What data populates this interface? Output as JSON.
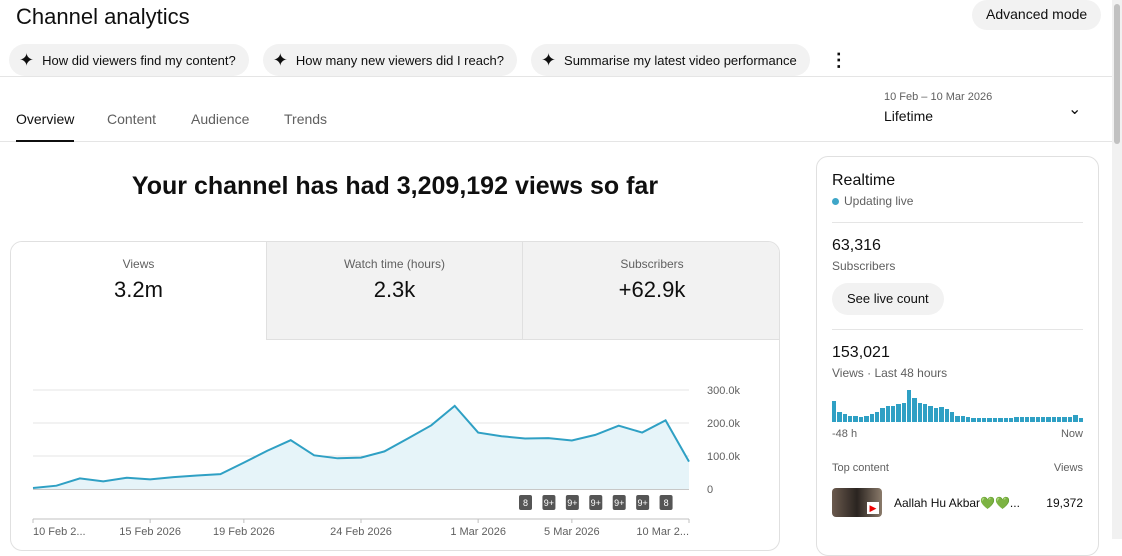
{
  "header": {
    "title": "Channel analytics",
    "advanced_mode": "Advanced mode"
  },
  "chips": [
    {
      "icon": "sparkle-icon",
      "label": "How did viewers find my content?"
    },
    {
      "icon": "sparkle-icon",
      "label": "How many new viewers did I reach?"
    },
    {
      "icon": "sparkle-icon",
      "label": "Summarise my latest video performance"
    }
  ],
  "tabs": [
    {
      "label": "Overview",
      "active": true
    },
    {
      "label": "Content"
    },
    {
      "label": "Audience"
    },
    {
      "label": "Trends"
    }
  ],
  "date_range": {
    "dates": "10 Feb – 10 Mar 2026",
    "value": "Lifetime"
  },
  "headline": "Your channel has had 3,209,192 views so far",
  "metrics": [
    {
      "label": "Views",
      "value": "3.2m"
    },
    {
      "label": "Watch time (hours)",
      "value": "2.3k"
    },
    {
      "label": "Subscribers",
      "value": "+62.9k"
    }
  ],
  "chart_data": {
    "type": "area",
    "x": [
      "10 Feb",
      "11 Feb",
      "12 Feb",
      "13 Feb",
      "14 Feb",
      "15 Feb",
      "16 Feb",
      "17 Feb",
      "18 Feb",
      "19 Feb",
      "20 Feb",
      "21 Feb",
      "22 Feb",
      "23 Feb",
      "24 Feb",
      "25 Feb",
      "26 Feb",
      "27 Feb",
      "28 Feb",
      "1 Mar",
      "2 Mar",
      "3 Mar",
      "4 Mar",
      "5 Mar",
      "6 Mar",
      "7 Mar",
      "8 Mar",
      "9 Mar",
      "10 Mar"
    ],
    "values": [
      3000,
      10000,
      32000,
      23000,
      34000,
      29000,
      36000,
      41000,
      45000,
      80000,
      116000,
      148000,
      102000,
      93000,
      95000,
      114000,
      153000,
      193000,
      252000,
      171000,
      160000,
      153000,
      154000,
      147000,
      164000,
      192000,
      171000,
      208000,
      83000
    ],
    "ylim": [
      0,
      300000
    ],
    "y_ticks": [
      "0",
      "100.0k",
      "200.0k",
      "300.0k"
    ],
    "x_tick_labels": [
      {
        "i": 0,
        "label": "10 Feb 2..."
      },
      {
        "i": 5,
        "label": "15 Feb 2026"
      },
      {
        "i": 9,
        "label": "19 Feb 2026"
      },
      {
        "i": 14,
        "label": "24 Feb 2026"
      },
      {
        "i": 19,
        "label": "1 Mar 2026"
      },
      {
        "i": 23,
        "label": "5 Mar 2026"
      },
      {
        "i": 28,
        "label": "10 Mar 2..."
      }
    ],
    "badges": [
      {
        "i": 21,
        "label": "8"
      },
      {
        "i": 22,
        "label": "9+"
      },
      {
        "i": 23,
        "label": "9+"
      },
      {
        "i": 24,
        "label": "9+"
      },
      {
        "i": 25,
        "label": "9+"
      },
      {
        "i": 26,
        "label": "9+"
      },
      {
        "i": 27,
        "label": "8"
      }
    ],
    "grid": true,
    "color": "#2fa0c4"
  },
  "realtime": {
    "title": "Realtime",
    "status": "Updating live",
    "subscribers": "63,316",
    "subscribers_label": "Subscribers",
    "live_button": "See live count",
    "views": "153,021",
    "views_label": "Views · Last 48 hours",
    "bars": [
      65,
      30,
      25,
      20,
      18,
      15,
      18,
      25,
      30,
      45,
      50,
      50,
      55,
      60,
      100,
      75,
      60,
      55,
      50,
      45,
      48,
      40,
      30,
      20,
      18,
      15,
      13,
      12,
      12,
      12,
      12,
      12,
      12,
      13,
      15,
      17,
      17,
      17,
      17,
      17,
      17,
      17,
      17,
      17,
      17,
      22,
      12
    ],
    "axis_start": "-48 h",
    "axis_end": "Now",
    "top_content_label": "Top content",
    "views_col": "Views",
    "top": [
      {
        "title": "Aallah Hu Akbar💚💚...",
        "views": "19,372"
      }
    ]
  }
}
